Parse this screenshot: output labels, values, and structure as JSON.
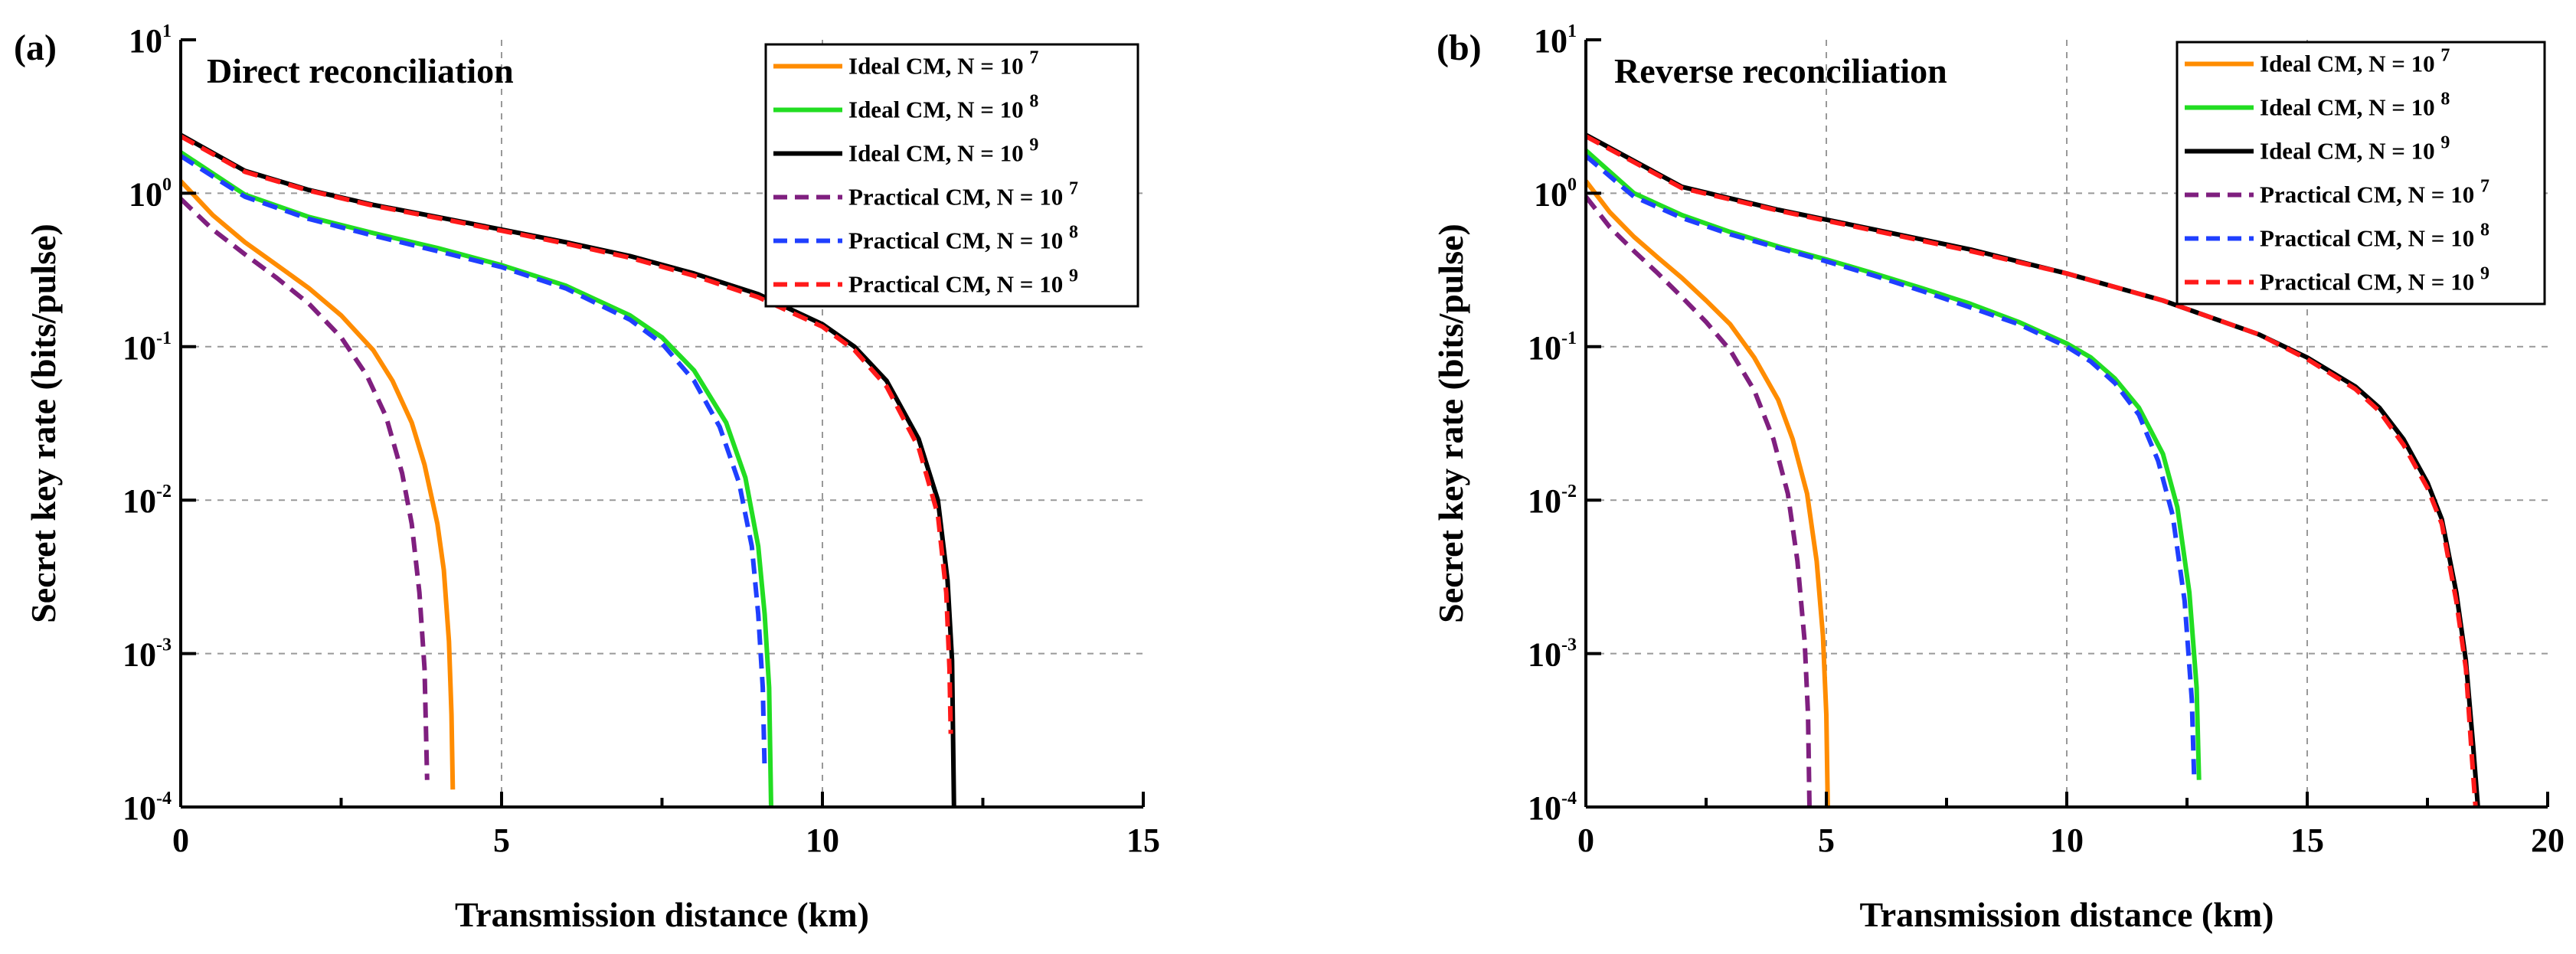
{
  "chart_data": [
    {
      "type": "line",
      "panel_label": "(a)",
      "title": "Direct reconciliation",
      "xlabel": "Transmission distance (km)",
      "ylabel": "Secret key rate (bits/pulse)",
      "xlim": [
        0,
        15
      ],
      "ylim_log10": [
        -4,
        1
      ],
      "xticks": [
        0,
        5,
        10,
        15
      ],
      "xtick_labels": [
        "0",
        "5",
        "10",
        "15"
      ],
      "yticks_log10": [
        -4,
        -3,
        -2,
        -1,
        0,
        1
      ],
      "ytick_labels": [
        {
          "base": "10",
          "exp": "-4"
        },
        {
          "base": "10",
          "exp": "-3"
        },
        {
          "base": "10",
          "exp": "-2"
        },
        {
          "base": "10",
          "exp": "-1"
        },
        {
          "base": "10",
          "exp": "0"
        },
        {
          "base": "10",
          "exp": "1"
        }
      ],
      "grid": true,
      "legend_position": "top-right",
      "series": [
        {
          "name": "Ideal CM, N = 10",
          "exp": "7",
          "color": "#ff8c00",
          "dash": "solid",
          "x": [
            0,
            0.5,
            1,
            1.5,
            2,
            2.5,
            3,
            3.3,
            3.6,
            3.8,
            4.0,
            4.1,
            4.18,
            4.22,
            4.24
          ],
          "y": [
            1.2,
            0.72,
            0.48,
            0.34,
            0.24,
            0.16,
            0.095,
            0.06,
            0.032,
            0.017,
            0.007,
            0.0035,
            0.0012,
            0.0004,
            0.00013
          ]
        },
        {
          "name": "Ideal CM, N = 10",
          "exp": "8",
          "color": "#22dd22",
          "dash": "solid",
          "x": [
            0,
            1,
            2,
            3,
            4,
            5,
            6,
            7,
            7.5,
            8,
            8.5,
            8.8,
            9.0,
            9.1,
            9.17,
            9.2
          ],
          "y": [
            1.85,
            0.98,
            0.7,
            0.55,
            0.44,
            0.34,
            0.25,
            0.16,
            0.115,
            0.07,
            0.032,
            0.014,
            0.005,
            0.0018,
            0.0006,
            0.0001
          ]
        },
        {
          "name": "Ideal CM, N = 10",
          "exp": "9",
          "color": "#000000",
          "dash": "solid",
          "x": [
            0,
            1,
            2,
            3,
            4,
            5,
            6,
            7,
            8,
            9,
            10,
            10.5,
            11,
            11.5,
            11.8,
            11.95,
            12.02,
            12.05
          ],
          "y": [
            2.4,
            1.4,
            1.05,
            0.84,
            0.7,
            0.58,
            0.48,
            0.39,
            0.3,
            0.22,
            0.14,
            0.1,
            0.06,
            0.025,
            0.01,
            0.003,
            0.0009,
            0.0001
          ]
        },
        {
          "name": "Practical CM, N = 10",
          "exp": "7",
          "color": "#7f1f7f",
          "dash": "dashed",
          "x": [
            0,
            0.5,
            1,
            1.5,
            2,
            2.5,
            2.9,
            3.2,
            3.45,
            3.6,
            3.72,
            3.8,
            3.84
          ],
          "y": [
            0.92,
            0.58,
            0.4,
            0.28,
            0.19,
            0.115,
            0.065,
            0.035,
            0.015,
            0.007,
            0.0025,
            0.0008,
            0.00015
          ]
        },
        {
          "name": "Practical CM, N = 10",
          "exp": "8",
          "color": "#1f3fff",
          "dash": "dashed",
          "x": [
            0,
            1,
            2,
            3,
            4,
            5,
            6,
            7,
            7.5,
            8,
            8.4,
            8.7,
            8.9,
            9.0,
            9.07,
            9.1
          ],
          "y": [
            1.75,
            0.95,
            0.68,
            0.53,
            0.42,
            0.33,
            0.24,
            0.15,
            0.105,
            0.06,
            0.03,
            0.013,
            0.005,
            0.0018,
            0.0006,
            0.00017
          ]
        },
        {
          "name": "Practical CM, N = 10",
          "exp": "9",
          "color": "#ff1a1a",
          "dash": "dashed",
          "x": [
            0,
            1,
            2,
            3,
            4,
            5,
            6,
            7,
            8,
            9,
            10,
            10.5,
            11,
            11.5,
            11.8,
            11.93,
            11.98,
            12.0
          ],
          "y": [
            2.35,
            1.38,
            1.04,
            0.83,
            0.69,
            0.57,
            0.47,
            0.38,
            0.29,
            0.21,
            0.135,
            0.095,
            0.055,
            0.022,
            0.008,
            0.0025,
            0.0008,
            0.0003
          ]
        }
      ]
    },
    {
      "type": "line",
      "panel_label": "(b)",
      "title": "Reverse reconciliation",
      "xlabel": "Transmission distance (km)",
      "ylabel": "Secret key rate (bits/pulse)",
      "xlim": [
        0,
        20
      ],
      "ylim_log10": [
        -4,
        1
      ],
      "xticks": [
        0,
        5,
        10,
        15,
        20
      ],
      "xtick_labels": [
        "0",
        "5",
        "10",
        "15",
        "20"
      ],
      "yticks_log10": [
        -4,
        -3,
        -2,
        -1,
        0,
        1
      ],
      "ytick_labels": [
        {
          "base": "10",
          "exp": "-4"
        },
        {
          "base": "10",
          "exp": "-3"
        },
        {
          "base": "10",
          "exp": "-2"
        },
        {
          "base": "10",
          "exp": "-1"
        },
        {
          "base": "10",
          "exp": "0"
        },
        {
          "base": "10",
          "exp": "1"
        }
      ],
      "grid": true,
      "legend_position": "top-right",
      "series": [
        {
          "name": "Ideal CM, N = 10",
          "exp": "7",
          "color": "#ff8c00",
          "dash": "solid",
          "x": [
            0,
            0.5,
            1,
            1.5,
            2,
            2.5,
            3,
            3.5,
            4,
            4.3,
            4.6,
            4.8,
            4.93,
            5.0,
            5.03
          ],
          "y": [
            1.2,
            0.75,
            0.52,
            0.38,
            0.28,
            0.2,
            0.14,
            0.085,
            0.045,
            0.025,
            0.011,
            0.004,
            0.0013,
            0.0004,
            0.0001
          ]
        },
        {
          "name": "Ideal CM, N = 10",
          "exp": "8",
          "color": "#22dd22",
          "dash": "solid",
          "x": [
            0,
            1,
            2,
            3,
            4,
            5,
            6,
            7,
            8,
            9,
            10,
            10.5,
            11,
            11.5,
            12,
            12.3,
            12.55,
            12.7,
            12.75
          ],
          "y": [
            1.9,
            1.0,
            0.72,
            0.56,
            0.45,
            0.37,
            0.3,
            0.24,
            0.19,
            0.145,
            0.105,
            0.085,
            0.062,
            0.04,
            0.02,
            0.009,
            0.0025,
            0.0006,
            0.00015
          ]
        },
        {
          "name": "Ideal CM, N = 10",
          "exp": "9",
          "color": "#000000",
          "dash": "solid",
          "x": [
            0,
            2,
            4,
            6,
            8,
            10,
            12,
            14,
            15,
            16,
            16.5,
            17,
            17.5,
            17.8,
            18.1,
            18.3,
            18.45,
            18.55
          ],
          "y": [
            2.4,
            1.1,
            0.78,
            0.58,
            0.43,
            0.3,
            0.2,
            0.12,
            0.085,
            0.055,
            0.04,
            0.025,
            0.013,
            0.0075,
            0.0025,
            0.0009,
            0.00025,
            0.0001
          ]
        },
        {
          "name": "Practical CM, N = 10",
          "exp": "7",
          "color": "#7f1f7f",
          "dash": "dashed",
          "x": [
            0,
            0.5,
            1,
            1.5,
            2,
            2.5,
            3,
            3.5,
            3.9,
            4.2,
            4.4,
            4.55,
            4.62,
            4.65
          ],
          "y": [
            0.95,
            0.6,
            0.42,
            0.3,
            0.21,
            0.145,
            0.095,
            0.052,
            0.025,
            0.011,
            0.004,
            0.0012,
            0.0004,
            0.0001
          ]
        },
        {
          "name": "Practical CM, N = 10",
          "exp": "8",
          "color": "#1f3fff",
          "dash": "dashed",
          "x": [
            0,
            1,
            2,
            3,
            4,
            5,
            6,
            7,
            8,
            9,
            10,
            10.5,
            11,
            11.5,
            11.9,
            12.2,
            12.45,
            12.6,
            12.65
          ],
          "y": [
            1.75,
            0.95,
            0.69,
            0.54,
            0.44,
            0.36,
            0.29,
            0.23,
            0.18,
            0.14,
            0.1,
            0.08,
            0.058,
            0.036,
            0.018,
            0.008,
            0.0022,
            0.0005,
            0.00015
          ]
        },
        {
          "name": "Practical CM, N = 10",
          "exp": "9",
          "color": "#ff1a1a",
          "dash": "dashed",
          "x": [
            0,
            2,
            4,
            6,
            8,
            10,
            12,
            14,
            15,
            16,
            16.5,
            17,
            17.5,
            17.8,
            18.1,
            18.3,
            18.43,
            18.5
          ],
          "y": [
            2.35,
            1.08,
            0.77,
            0.57,
            0.42,
            0.3,
            0.2,
            0.12,
            0.083,
            0.053,
            0.038,
            0.023,
            0.012,
            0.007,
            0.0022,
            0.0008,
            0.0002,
            0.0001
          ]
        }
      ]
    }
  ]
}
